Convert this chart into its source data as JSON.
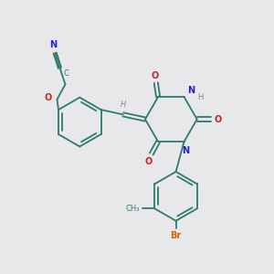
{
  "bg_color": "#e8e8ea",
  "bond_color": "#2d7a6e",
  "N_color": "#2222cc",
  "O_color": "#cc2222",
  "Br_color": "#cc6600",
  "H_color": "#888888",
  "figsize": [
    3.0,
    3.0
  ],
  "dpi": 100,
  "xlim": [
    0,
    10
  ],
  "ylim": [
    0,
    10
  ]
}
